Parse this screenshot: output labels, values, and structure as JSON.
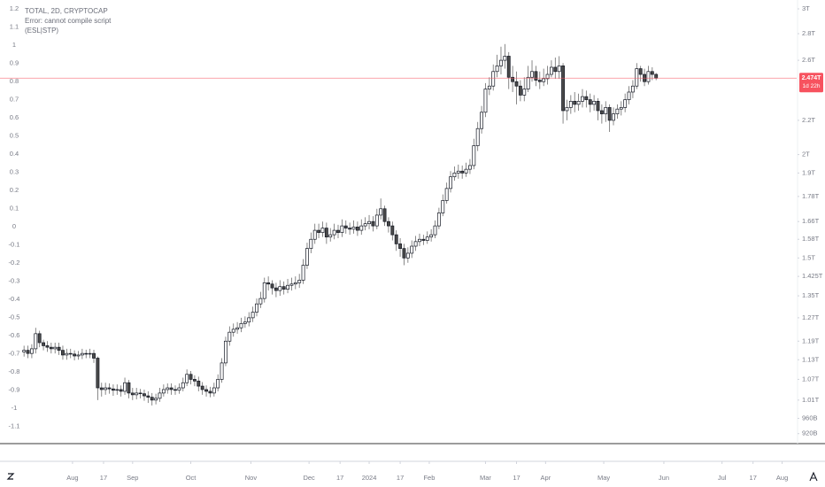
{
  "chart_data": {
    "type": "candlestick",
    "title": "TOTAL, 2D, CRYPTOCAP",
    "subtitle": "Error: cannot compile script",
    "annotation": "(ESL|STP)",
    "log_scale": true,
    "up_color": "#ffffff",
    "down_color": "#4a4a4a",
    "border_color": "#131722",
    "wick_color": "#6b6b6b",
    "price_line_color": "#f7525f",
    "last_price": {
      "value": 2.474,
      "label": "2.474T"
    },
    "countdown": "1d 22h",
    "x": [
      6,
      8,
      10,
      12,
      14,
      16,
      18,
      20,
      22,
      24,
      26,
      28,
      30,
      32,
      34,
      36,
      38,
      40,
      42,
      44,
      46,
      48,
      50,
      52,
      54,
      56,
      58,
      60,
      62,
      64,
      66,
      68,
      70,
      72,
      74,
      76,
      78,
      80,
      82,
      84,
      86,
      88,
      90,
      92,
      94,
      96,
      98,
      100,
      102,
      104,
      106,
      108,
      110,
      112,
      114,
      116,
      118,
      120,
      122,
      124,
      126,
      128,
      130,
      132,
      134,
      136,
      138,
      140,
      142,
      144,
      146,
      148,
      150,
      152,
      154,
      156,
      158,
      160,
      162,
      164,
      166,
      168,
      170,
      172,
      174,
      176,
      178,
      180,
      182,
      184,
      186,
      188,
      190,
      192,
      194,
      196,
      198,
      200,
      202,
      204,
      206,
      208,
      210,
      212,
      214,
      216,
      218,
      220,
      222,
      224,
      226,
      228,
      230,
      232,
      234,
      236,
      238,
      240,
      242,
      244,
      246,
      248,
      250,
      252,
      254,
      256,
      258,
      260,
      262,
      264,
      266,
      268,
      270,
      272,
      274,
      276,
      278,
      280,
      282,
      284,
      286,
      288,
      290,
      292,
      294,
      296,
      298,
      300,
      302,
      304,
      306,
      308,
      310,
      312,
      314,
      316,
      318,
      320,
      322,
      324,
      326,
      328,
      330,
      332
    ],
    "open": [
      1.155,
      1.16,
      1.15,
      1.165,
      1.215,
      1.185,
      1.175,
      1.17,
      1.165,
      1.17,
      1.16,
      1.145,
      1.15,
      1.148,
      1.142,
      1.145,
      1.15,
      1.148,
      1.15,
      1.135,
      1.045,
      1.04,
      1.045,
      1.042,
      1.038,
      1.04,
      1.035,
      1.06,
      1.03,
      1.025,
      1.03,
      1.028,
      1.022,
      1.018,
      1.01,
      1.015,
      1.03,
      1.04,
      1.045,
      1.04,
      1.038,
      1.045,
      1.06,
      1.085,
      1.07,
      1.065,
      1.05,
      1.04,
      1.035,
      1.03,
      1.045,
      1.07,
      1.12,
      1.19,
      1.22,
      1.23,
      1.235,
      1.25,
      1.255,
      1.27,
      1.29,
      1.32,
      1.34,
      1.4,
      1.395,
      1.38,
      1.37,
      1.385,
      1.375,
      1.39,
      1.395,
      1.4,
      1.41,
      1.47,
      1.54,
      1.58,
      1.62,
      1.61,
      1.63,
      1.59,
      1.6,
      1.62,
      1.61,
      1.64,
      1.63,
      1.625,
      1.635,
      1.62,
      1.64,
      1.65,
      1.66,
      1.64,
      1.69,
      1.72,
      1.66,
      1.64,
      1.6,
      1.56,
      1.54,
      1.5,
      1.52,
      1.55,
      1.57,
      1.58,
      1.575,
      1.59,
      1.6,
      1.64,
      1.7,
      1.76,
      1.82,
      1.88,
      1.9,
      1.91,
      1.9,
      1.92,
      1.94,
      2.05,
      2.15,
      2.25,
      2.4,
      2.42,
      2.52,
      2.56,
      2.6,
      2.63,
      2.48,
      2.45,
      2.42,
      2.36,
      2.4,
      2.48,
      2.52,
      2.46,
      2.45,
      2.47,
      2.5,
      2.55,
      2.52,
      2.56,
      2.26,
      2.28,
      2.32,
      2.3,
      2.32,
      2.35,
      2.33,
      2.3,
      2.32,
      2.26,
      2.24,
      2.28,
      2.2,
      2.24,
      2.27,
      2.28,
      2.33,
      2.38,
      2.42,
      2.54,
      2.5,
      2.45,
      2.52,
      2.5
    ],
    "high": [
      1.175,
      1.175,
      1.18,
      1.235,
      1.225,
      1.195,
      1.19,
      1.185,
      1.185,
      1.185,
      1.175,
      1.165,
      1.165,
      1.16,
      1.158,
      1.165,
      1.162,
      1.165,
      1.162,
      1.14,
      1.06,
      1.06,
      1.058,
      1.055,
      1.055,
      1.052,
      1.075,
      1.068,
      1.045,
      1.045,
      1.042,
      1.04,
      1.035,
      1.03,
      1.028,
      1.045,
      1.055,
      1.058,
      1.058,
      1.052,
      1.058,
      1.075,
      1.1,
      1.095,
      1.082,
      1.078,
      1.062,
      1.052,
      1.048,
      1.06,
      1.085,
      1.135,
      1.205,
      1.24,
      1.25,
      1.255,
      1.27,
      1.275,
      1.29,
      1.31,
      1.34,
      1.365,
      1.42,
      1.425,
      1.41,
      1.4,
      1.41,
      1.405,
      1.415,
      1.42,
      1.425,
      1.435,
      1.495,
      1.565,
      1.61,
      1.65,
      1.65,
      1.66,
      1.655,
      1.63,
      1.65,
      1.645,
      1.67,
      1.665,
      1.655,
      1.665,
      1.66,
      1.67,
      1.68,
      1.69,
      1.685,
      1.72,
      1.77,
      1.735,
      1.68,
      1.66,
      1.62,
      1.585,
      1.56,
      1.545,
      1.575,
      1.595,
      1.605,
      1.6,
      1.615,
      1.625,
      1.665,
      1.725,
      1.79,
      1.85,
      1.91,
      1.935,
      1.945,
      1.94,
      1.955,
      1.975,
      2.09,
      2.19,
      2.29,
      2.44,
      2.48,
      2.57,
      2.64,
      2.7,
      2.72,
      2.66,
      2.56,
      2.52,
      2.46,
      2.48,
      2.56,
      2.6,
      2.56,
      2.52,
      2.54,
      2.56,
      2.6,
      2.62,
      2.63,
      2.58,
      2.33,
      2.36,
      2.38,
      2.37,
      2.4,
      2.39,
      2.37,
      2.36,
      2.34,
      2.3,
      2.32,
      2.3,
      2.28,
      2.3,
      2.32,
      2.37,
      2.42,
      2.46,
      2.58,
      2.56,
      2.54,
      2.56,
      2.55,
      2.51
    ],
    "low": [
      1.14,
      1.135,
      1.135,
      1.15,
      1.17,
      1.16,
      1.155,
      1.15,
      1.15,
      1.145,
      1.13,
      1.13,
      1.135,
      1.128,
      1.13,
      1.132,
      1.135,
      1.135,
      1.12,
      1.01,
      1.02,
      1.025,
      1.028,
      1.022,
      1.025,
      1.02,
      1.025,
      1.015,
      1.01,
      1.012,
      1.015,
      1.008,
      1.002,
      0.995,
      0.998,
      1.005,
      1.02,
      1.028,
      1.025,
      1.025,
      1.028,
      1.035,
      1.05,
      1.055,
      1.05,
      1.035,
      1.025,
      1.02,
      1.018,
      1.02,
      1.035,
      1.06,
      1.11,
      1.175,
      1.205,
      1.215,
      1.22,
      1.235,
      1.24,
      1.255,
      1.275,
      1.305,
      1.325,
      1.37,
      1.355,
      1.345,
      1.35,
      1.355,
      1.36,
      1.37,
      1.375,
      1.38,
      1.395,
      1.455,
      1.52,
      1.56,
      1.585,
      1.59,
      1.56,
      1.57,
      1.58,
      1.585,
      1.59,
      1.605,
      1.6,
      1.605,
      1.595,
      1.6,
      1.62,
      1.625,
      1.615,
      1.625,
      1.67,
      1.64,
      1.61,
      1.575,
      1.53,
      1.505,
      1.47,
      1.48,
      1.5,
      1.53,
      1.55,
      1.555,
      1.56,
      1.57,
      1.585,
      1.625,
      1.685,
      1.745,
      1.8,
      1.86,
      1.87,
      1.87,
      1.88,
      1.895,
      1.92,
      2.02,
      2.12,
      2.22,
      2.36,
      2.39,
      2.48,
      2.5,
      2.54,
      2.4,
      2.38,
      2.3,
      2.32,
      2.32,
      2.38,
      2.45,
      2.42,
      2.4,
      2.42,
      2.43,
      2.48,
      2.47,
      2.47,
      2.18,
      2.2,
      2.24,
      2.25,
      2.26,
      2.28,
      2.28,
      2.25,
      2.26,
      2.2,
      2.18,
      2.19,
      2.13,
      2.17,
      2.21,
      2.23,
      2.25,
      2.3,
      2.34,
      2.4,
      2.45,
      2.42,
      2.43,
      2.46,
      2.46
    ],
    "close": [
      1.16,
      1.15,
      1.165,
      1.215,
      1.185,
      1.175,
      1.17,
      1.165,
      1.17,
      1.16,
      1.145,
      1.15,
      1.148,
      1.142,
      1.145,
      1.15,
      1.148,
      1.15,
      1.135,
      1.045,
      1.04,
      1.045,
      1.042,
      1.038,
      1.04,
      1.035,
      1.06,
      1.03,
      1.025,
      1.03,
      1.028,
      1.022,
      1.018,
      1.01,
      1.015,
      1.03,
      1.04,
      1.045,
      1.04,
      1.038,
      1.045,
      1.06,
      1.085,
      1.07,
      1.065,
      1.05,
      1.04,
      1.035,
      1.03,
      1.045,
      1.07,
      1.12,
      1.19,
      1.22,
      1.23,
      1.235,
      1.25,
      1.255,
      1.27,
      1.29,
      1.32,
      1.34,
      1.4,
      1.395,
      1.38,
      1.37,
      1.385,
      1.375,
      1.39,
      1.395,
      1.4,
      1.41,
      1.47,
      1.54,
      1.58,
      1.62,
      1.61,
      1.63,
      1.59,
      1.6,
      1.62,
      1.61,
      1.64,
      1.63,
      1.625,
      1.635,
      1.62,
      1.64,
      1.65,
      1.66,
      1.64,
      1.69,
      1.72,
      1.66,
      1.64,
      1.6,
      1.56,
      1.54,
      1.5,
      1.52,
      1.55,
      1.57,
      1.58,
      1.575,
      1.59,
      1.6,
      1.64,
      1.7,
      1.76,
      1.82,
      1.88,
      1.9,
      1.91,
      1.9,
      1.92,
      1.94,
      2.05,
      2.15,
      2.25,
      2.4,
      2.42,
      2.52,
      2.56,
      2.6,
      2.63,
      2.48,
      2.45,
      2.42,
      2.36,
      2.4,
      2.48,
      2.52,
      2.46,
      2.45,
      2.47,
      2.5,
      2.55,
      2.52,
      2.56,
      2.26,
      2.28,
      2.32,
      2.3,
      2.32,
      2.35,
      2.33,
      2.3,
      2.32,
      2.26,
      2.24,
      2.28,
      2.2,
      2.24,
      2.27,
      2.28,
      2.33,
      2.38,
      2.42,
      2.54,
      2.5,
      2.45,
      2.52,
      2.5,
      2.474
    ],
    "xlim": [
      -6.4,
      404.5
    ],
    "xticks": [
      {
        "value": 31,
        "label": "Aug"
      },
      {
        "value": 47,
        "label": "17"
      },
      {
        "value": 62,
        "label": "Sep"
      },
      {
        "value": 92,
        "label": "Oct"
      },
      {
        "value": 123,
        "label": "Nov"
      },
      {
        "value": 153,
        "label": "Dec"
      },
      {
        "value": 169,
        "label": "17"
      },
      {
        "value": 184,
        "label": "2024"
      },
      {
        "value": 200,
        "label": "17"
      },
      {
        "value": 215,
        "label": "Feb"
      },
      {
        "value": 244,
        "label": "Mar"
      },
      {
        "value": 260,
        "label": "17"
      },
      {
        "value": 275,
        "label": "Apr"
      },
      {
        "value": 305,
        "label": "May"
      },
      {
        "value": 336,
        "label": "Jun"
      },
      {
        "value": 366,
        "label": "Jul"
      },
      {
        "value": 382,
        "label": "17"
      },
      {
        "value": 397,
        "label": "Aug"
      }
    ],
    "ylim": [
      0.897,
      3.075
    ],
    "yticks": [
      {
        "value": 3,
        "label": "3T"
      },
      {
        "value": 2.8,
        "label": "2.8T"
      },
      {
        "value": 2.6,
        "label": "2.6T"
      },
      {
        "value": 2.2,
        "label": "2.2T"
      },
      {
        "value": 2,
        "label": "2T"
      },
      {
        "value": 1.9,
        "label": "1.9T"
      },
      {
        "value": 1.78,
        "label": "1.78T"
      },
      {
        "value": 1.66,
        "label": "1.66T"
      },
      {
        "value": 1.58,
        "label": "1.58T"
      },
      {
        "value": 1.5,
        "label": "1.5T"
      },
      {
        "value": 1.425,
        "label": "1.425T"
      },
      {
        "value": 1.35,
        "label": "1.35T"
      },
      {
        "value": 1.27,
        "label": "1.27T"
      },
      {
        "value": 1.19,
        "label": "1.19T"
      },
      {
        "value": 1.13,
        "label": "1.13T"
      },
      {
        "value": 1.07,
        "label": "1.07T"
      },
      {
        "value": 1.01,
        "label": "1.01T"
      },
      {
        "value": 0.96,
        "label": "960B"
      },
      {
        "value": 0.92,
        "label": "920B"
      }
    ],
    "y2lim": [
      -1.19,
      1.249
    ],
    "y2ticks": [
      1.2,
      1.1,
      1,
      0.9,
      0.8,
      0.7,
      0.6,
      0.5,
      0.4,
      0.3,
      0.2,
      0.1,
      0,
      -0.1,
      -0.2,
      -0.3,
      -0.4,
      -0.5,
      -0.6,
      -0.7,
      -0.8,
      -0.9,
      -1,
      -1.1
    ]
  }
}
